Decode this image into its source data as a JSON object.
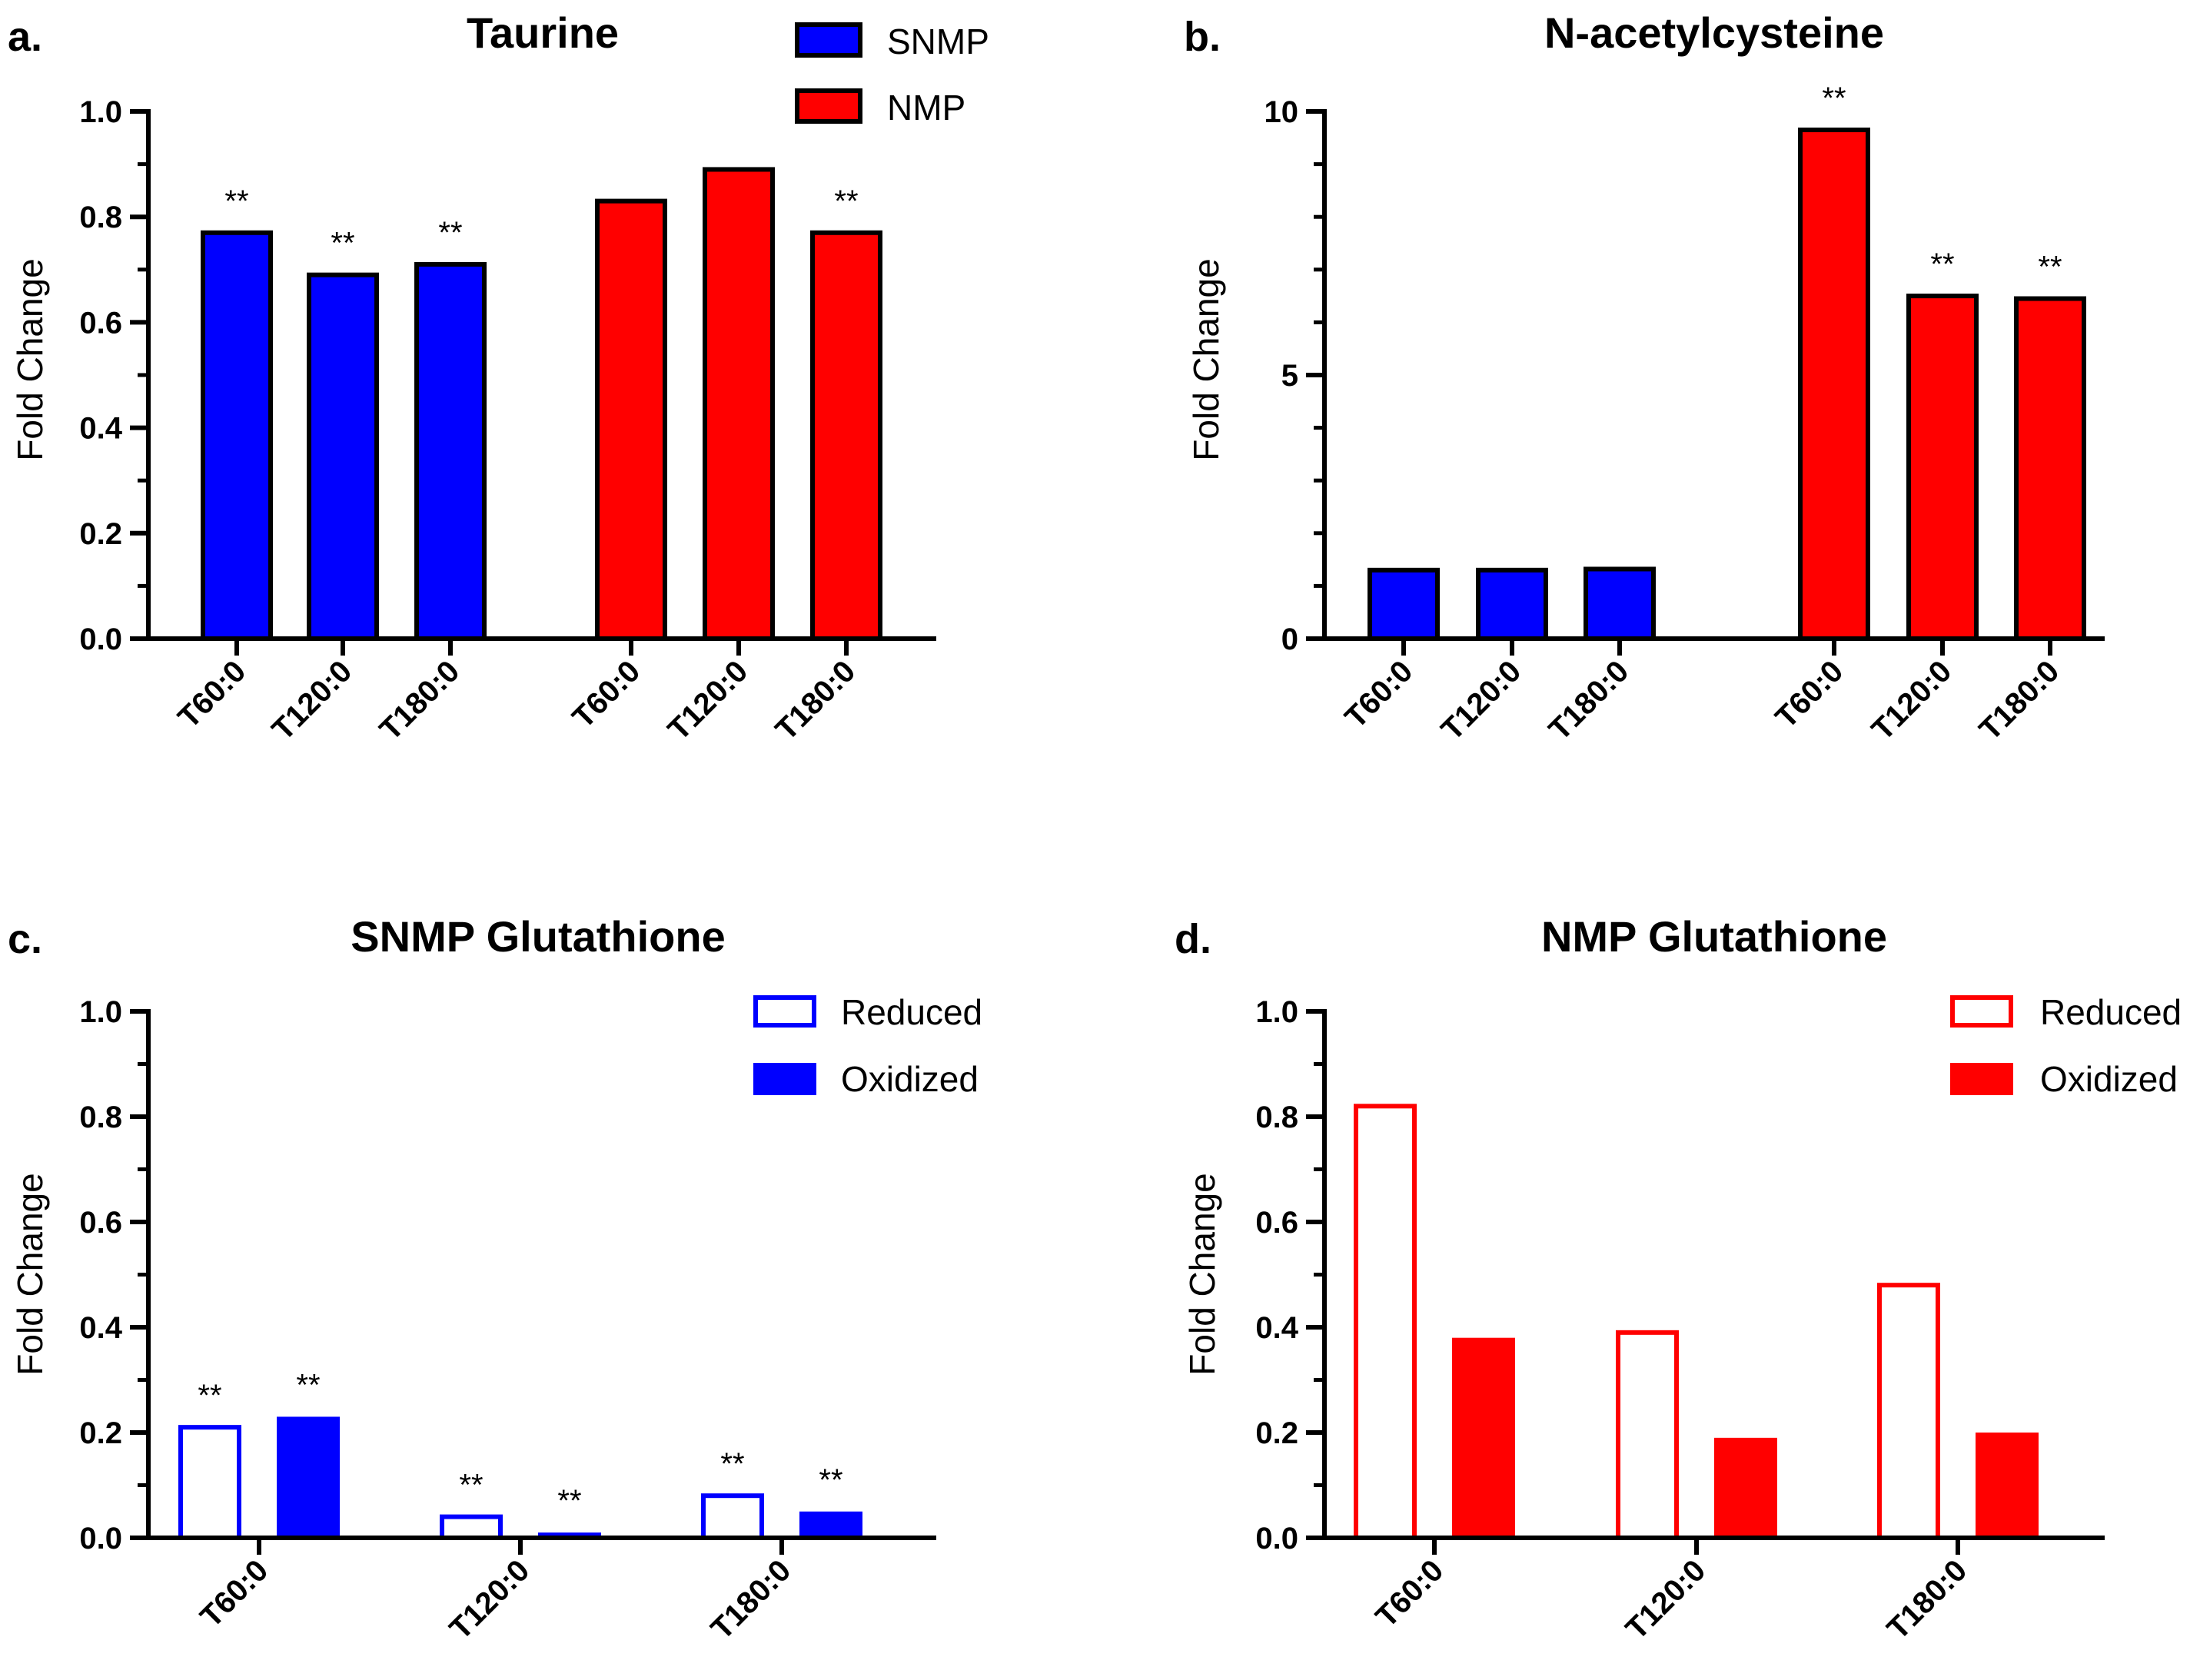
{
  "chart_data": [
    {
      "id": "a",
      "panel_label": "a.",
      "type": "bar",
      "title": "Taurine",
      "ylabel": "Fold Change",
      "xlabel": "",
      "ylim": [
        0,
        1.0
      ],
      "yticks": [
        0.0,
        0.2,
        0.4,
        0.6,
        0.8,
        1.0
      ],
      "ytick_labels": [
        "0.0",
        "0.2",
        "0.4",
        "0.6",
        "0.8",
        "1.0"
      ],
      "legend_position": "top-right",
      "legend": [
        {
          "name": "SNMP",
          "style": "filled",
          "color": "#0000ff"
        },
        {
          "name": "NMP",
          "style": "filled",
          "color": "#ff0000"
        }
      ],
      "bars": [
        {
          "category": "T60:0",
          "series": "SNMP",
          "value": 0.77,
          "annotation": "**"
        },
        {
          "category": "T120:0",
          "series": "SNMP",
          "value": 0.69,
          "annotation": "**"
        },
        {
          "category": "T180:0",
          "series": "SNMP",
          "value": 0.71,
          "annotation": "**"
        },
        {
          "category": "T60:0",
          "series": "NMP",
          "value": 0.83,
          "annotation": ""
        },
        {
          "category": "T120:0",
          "series": "NMP",
          "value": 0.89,
          "annotation": ""
        },
        {
          "category": "T180:0",
          "series": "NMP",
          "value": 0.77,
          "annotation": "**"
        }
      ]
    },
    {
      "id": "b",
      "panel_label": "b.",
      "type": "bar",
      "title": "N-acetylcysteine",
      "ylabel": "Fold Change",
      "xlabel": "",
      "ylim": [
        0,
        10
      ],
      "yticks": [
        0,
        5,
        10
      ],
      "ytick_labels": [
        "0",
        "5",
        "10"
      ],
      "legend_position": "none",
      "legend": [],
      "bars": [
        {
          "category": "T60:0",
          "series": "SNMP",
          "value": 1.3,
          "annotation": ""
        },
        {
          "category": "T120:0",
          "series": "SNMP",
          "value": 1.3,
          "annotation": ""
        },
        {
          "category": "T180:0",
          "series": "SNMP",
          "value": 1.32,
          "annotation": ""
        },
        {
          "category": "T60:0",
          "series": "NMP",
          "value": 9.65,
          "annotation": "**"
        },
        {
          "category": "T120:0",
          "series": "NMP",
          "value": 6.5,
          "annotation": "**"
        },
        {
          "category": "T180:0",
          "series": "NMP",
          "value": 6.45,
          "annotation": "**"
        }
      ]
    },
    {
      "id": "c",
      "panel_label": "c.",
      "type": "bar",
      "title": "SNMP Glutathione",
      "ylabel": "Fold Change",
      "xlabel": "",
      "ylim": [
        0,
        1.0
      ],
      "yticks": [
        0.0,
        0.2,
        0.4,
        0.6,
        0.8,
        1.0
      ],
      "ytick_labels": [
        "0.0",
        "0.2",
        "0.4",
        "0.6",
        "0.8",
        "1.0"
      ],
      "legend_position": "top-right",
      "legend": [
        {
          "name": "Reduced",
          "style": "outline",
          "color": "#0000ff"
        },
        {
          "name": "Oxidized",
          "style": "filled",
          "color": "#0000ff"
        }
      ],
      "categories": [
        "T60:0",
        "T120:0",
        "T180:0"
      ],
      "series": [
        {
          "name": "Reduced",
          "values": [
            0.21,
            0.04,
            0.08
          ],
          "annotations": [
            "**",
            "**",
            "**"
          ]
        },
        {
          "name": "Oxidized",
          "values": [
            0.23,
            0.01,
            0.05
          ],
          "annotations": [
            "**",
            "**",
            "**"
          ]
        }
      ]
    },
    {
      "id": "d",
      "panel_label": "d.",
      "type": "bar",
      "title": "NMP Glutathione",
      "ylabel": "Fold Change",
      "xlabel": "",
      "ylim": [
        0,
        1.0
      ],
      "yticks": [
        0.0,
        0.2,
        0.4,
        0.6,
        0.8,
        1.0
      ],
      "ytick_labels": [
        "0.0",
        "0.2",
        "0.4",
        "0.6",
        "0.8",
        "1.0"
      ],
      "legend_position": "top-right",
      "legend": [
        {
          "name": "Reduced",
          "style": "outline",
          "color": "#ff0000"
        },
        {
          "name": "Oxidized",
          "style": "filled",
          "color": "#ff0000"
        }
      ],
      "categories": [
        "T60:0",
        "T120:0",
        "T180:0"
      ],
      "series": [
        {
          "name": "Reduced",
          "values": [
            0.82,
            0.39,
            0.48
          ],
          "annotations": [
            "",
            "",
            ""
          ]
        },
        {
          "name": "Oxidized",
          "values": [
            0.38,
            0.19,
            0.2
          ],
          "annotations": [
            "",
            "",
            ""
          ]
        }
      ]
    }
  ]
}
